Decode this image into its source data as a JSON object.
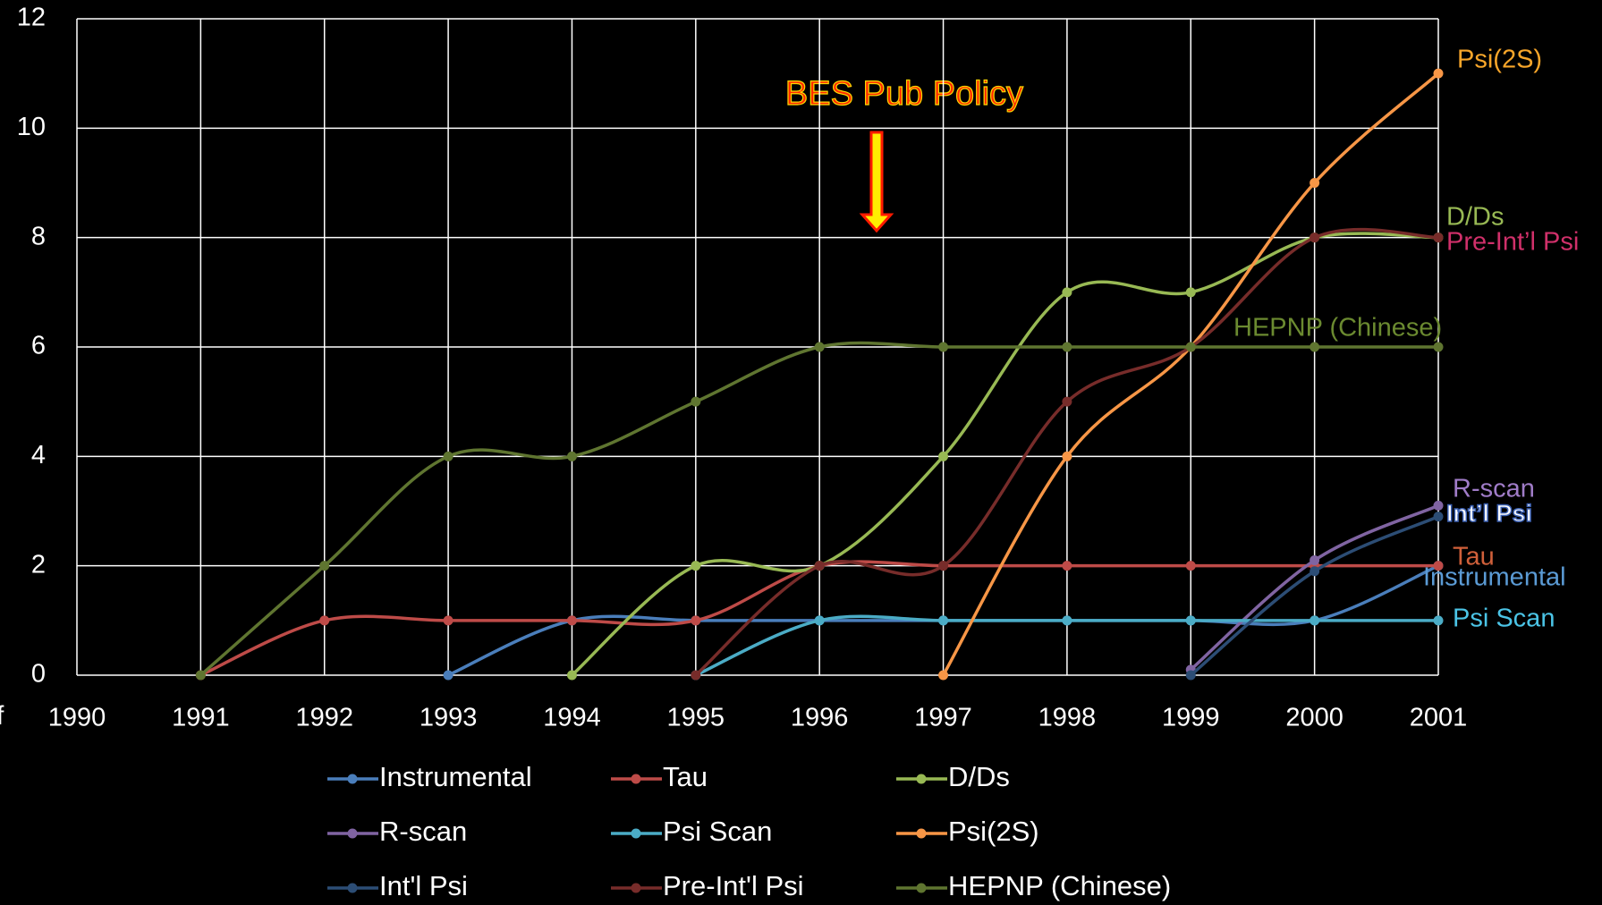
{
  "chart_data": {
    "type": "line",
    "annotation": "BES Pub Policy",
    "axis_label": "f",
    "x": [
      1991,
      1992,
      1993,
      1994,
      1995,
      1996,
      1997,
      1998,
      1999,
      2000,
      2001
    ],
    "xlim": [
      1990,
      2001
    ],
    "xticks": [
      1990,
      1991,
      1992,
      1993,
      1994,
      1995,
      1996,
      1997,
      1998,
      1999,
      2000,
      2001
    ],
    "ylim": [
      0,
      12
    ],
    "yticks": [
      0,
      2,
      4,
      6,
      8,
      10,
      12
    ],
    "grid": true,
    "smooth": true,
    "legend": "bottom",
    "series": [
      {
        "name": "Instrumental",
        "color": "#4a7ebb",
        "values": [
          null,
          null,
          0,
          1,
          1,
          1,
          1,
          1,
          1,
          1,
          2
        ]
      },
      {
        "name": "Tau",
        "color": "#be4b48",
        "values": [
          0,
          1,
          1,
          1,
          1,
          2,
          2,
          2,
          2,
          2,
          2
        ]
      },
      {
        "name": "D/Ds",
        "color": "#98b954",
        "values": [
          null,
          null,
          null,
          0,
          2,
          2,
          4,
          7,
          7,
          8,
          8
        ]
      },
      {
        "name": "R-scan",
        "color": "#8064a2",
        "values": [
          null,
          null,
          null,
          null,
          null,
          null,
          null,
          null,
          0.1,
          2.1,
          3.1
        ]
      },
      {
        "name": "Psi Scan",
        "color": "#4bacc6",
        "values": [
          null,
          null,
          null,
          null,
          0,
          1,
          1,
          1,
          1,
          1,
          1
        ]
      },
      {
        "name": "Psi(2S)",
        "color": "#f79646",
        "values": [
          null,
          null,
          null,
          null,
          null,
          null,
          0,
          4,
          6,
          9,
          11
        ]
      },
      {
        "name": "Int'l Psi",
        "color": "#2c4d75",
        "values": [
          null,
          null,
          null,
          null,
          null,
          null,
          null,
          null,
          0,
          1.9,
          2.9
        ]
      },
      {
        "name": "Pre-Int'l Psi",
        "color": "#772c2a",
        "values": [
          null,
          null,
          null,
          null,
          0,
          2,
          2,
          5,
          6,
          8,
          8
        ]
      },
      {
        "name": "HEPNP (Chinese)",
        "color": "#5f7530",
        "values": [
          0,
          2,
          4,
          4,
          5,
          6,
          6,
          6,
          6,
          6,
          6
        ]
      }
    ],
    "end_labels": [
      "Instrumental",
      "Tau",
      "D/Ds",
      "R-scan",
      "Psi Scan",
      "Psi(2S)",
      "Int’l Psi",
      "Pre-Int’l Psi",
      "HEPNP (Chinese)"
    ]
  }
}
